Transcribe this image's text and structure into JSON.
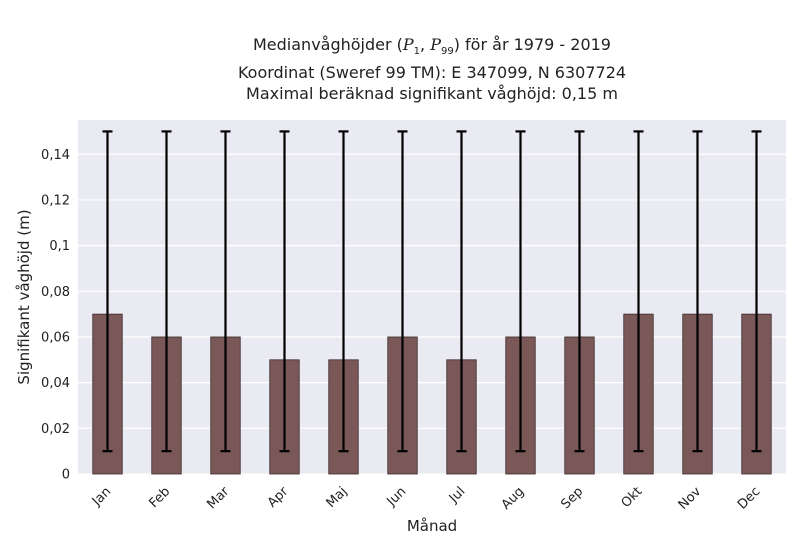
{
  "chart_data": {
    "type": "bar",
    "title": {
      "line1_prefix": "Medianvåghöjder (",
      "p_low": "P",
      "p_low_sub": "1",
      "separator": ", ",
      "p_high": "P",
      "p_high_sub": "99",
      "line1_suffix": ") för år 1979 - 2019",
      "line2": "Koordinat (Sweref 99 TM): E 347099, N 6307724",
      "line3": "Maximal beräknad signifikant våghöjd: 0,15 m"
    },
    "xlabel": "Månad",
    "ylabel": "Signifikant våghöjd (m)",
    "ylim": [
      0,
      0.155
    ],
    "yticks": [
      0,
      0.02,
      0.04,
      0.06,
      0.08,
      0.1,
      0.12,
      0.14
    ],
    "ytick_labels": [
      "0",
      "0,02",
      "0,04",
      "0,06",
      "0,08",
      "0,1",
      "0,12",
      "0,14"
    ],
    "categories": [
      "Jan",
      "Feb",
      "Mar",
      "Apr",
      "Maj",
      "Jun",
      "Jul",
      "Aug",
      "Sep",
      "Okt",
      "Nov",
      "Dec"
    ],
    "values": [
      0.07,
      0.06,
      0.06,
      0.05,
      0.05,
      0.06,
      0.05,
      0.06,
      0.06,
      0.07,
      0.07,
      0.07
    ],
    "p1": [
      0.01,
      0.01,
      0.01,
      0.01,
      0.01,
      0.01,
      0.01,
      0.01,
      0.01,
      0.01,
      0.01,
      0.01
    ],
    "p99": [
      0.15,
      0.15,
      0.15,
      0.15,
      0.15,
      0.15,
      0.15,
      0.15,
      0.15,
      0.15,
      0.15,
      0.15
    ],
    "grid": true,
    "colors": {
      "bar": "#7a5858",
      "bar_edge": "#3a2a2a",
      "error_bar": "#000000",
      "plot_background": "#eaeaf2",
      "grid": "#ffffff"
    }
  }
}
